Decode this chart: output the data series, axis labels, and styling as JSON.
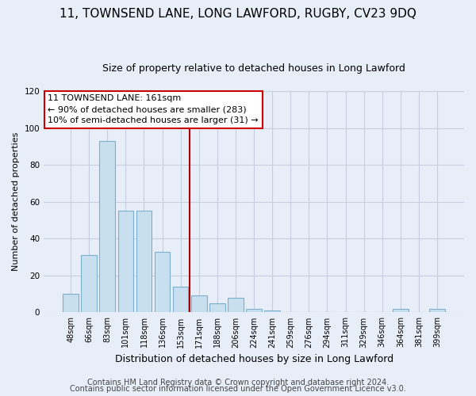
{
  "title1": "11, TOWNSEND LANE, LONG LAWFORD, RUGBY, CV23 9DQ",
  "title2": "Size of property relative to detached houses in Long Lawford",
  "xlabel": "Distribution of detached houses by size in Long Lawford",
  "ylabel": "Number of detached properties",
  "bar_labels": [
    "48sqm",
    "66sqm",
    "83sqm",
    "101sqm",
    "118sqm",
    "136sqm",
    "153sqm",
    "171sqm",
    "188sqm",
    "206sqm",
    "224sqm",
    "241sqm",
    "259sqm",
    "276sqm",
    "294sqm",
    "311sqm",
    "329sqm",
    "346sqm",
    "364sqm",
    "381sqm",
    "399sqm"
  ],
  "bar_values": [
    10,
    31,
    93,
    55,
    55,
    33,
    14,
    9,
    5,
    8,
    2,
    1,
    0,
    0,
    0,
    0,
    0,
    0,
    2,
    0,
    2
  ],
  "bar_color": "#c8dff0",
  "bar_edge_color": "#7ab0cc",
  "vline_x_idx": 7,
  "vline_color": "#aa0000",
  "annotation_title": "11 TOWNSEND LANE: 161sqm",
  "annotation_line1": "← 90% of detached houses are smaller (283)",
  "annotation_line2": "10% of semi-detached houses are larger (31) →",
  "annotation_box_facecolor": "#ffffff",
  "annotation_box_edgecolor": "#cc0000",
  "ylim": [
    0,
    120
  ],
  "yticks": [
    0,
    20,
    40,
    60,
    80,
    100,
    120
  ],
  "footer1": "Contains HM Land Registry data © Crown copyright and database right 2024.",
  "footer2": "Contains public sector information licensed under the Open Government Licence v3.0.",
  "background_color": "#e8eef8",
  "plot_bg_color": "#e8eef8",
  "grid_color": "#c5cfe0",
  "title1_fontsize": 11,
  "title2_fontsize": 9,
  "ylabel_fontsize": 8,
  "xlabel_fontsize": 9,
  "tick_fontsize": 7,
  "footer_fontsize": 7
}
